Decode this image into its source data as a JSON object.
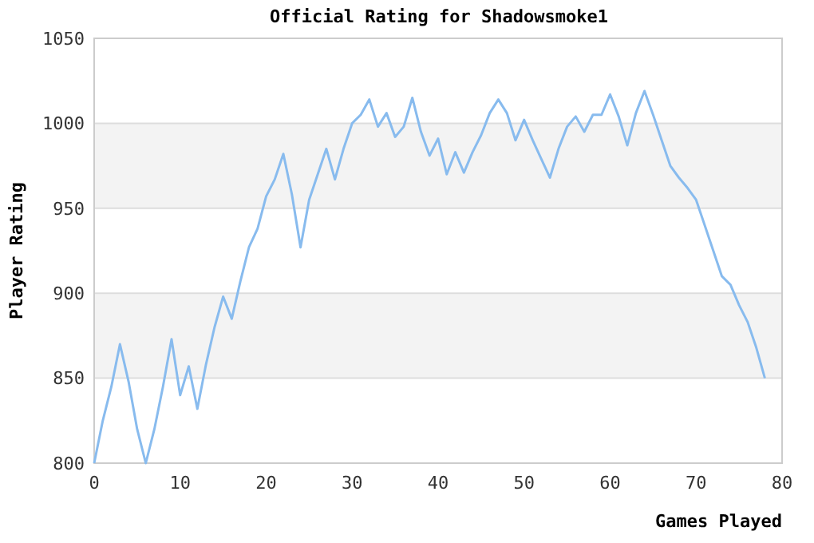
{
  "chart_data": {
    "type": "line",
    "title": "Official Rating for Shadowsmoke1",
    "xlabel": "Games Played",
    "ylabel": "Player Rating",
    "x": [
      0,
      1,
      2,
      3,
      4,
      5,
      6,
      7,
      8,
      9,
      10,
      11,
      12,
      13,
      14,
      15,
      16,
      17,
      18,
      19,
      20,
      21,
      22,
      23,
      24,
      25,
      26,
      27,
      28,
      29,
      30,
      31,
      32,
      33,
      34,
      35,
      36,
      37,
      38,
      39,
      40,
      41,
      42,
      43,
      44,
      45,
      46,
      47,
      48,
      49,
      50,
      51,
      52,
      53,
      54,
      55,
      56,
      57,
      58,
      59,
      60,
      61,
      62,
      63,
      64,
      65,
      66,
      67,
      68,
      69,
      70,
      71,
      72,
      73,
      74,
      75,
      76,
      77,
      78
    ],
    "series": [
      {
        "color": "#88bbee",
        "values": [
          800,
          825,
          845,
          870,
          848,
          820,
          800,
          820,
          845,
          873,
          840,
          857,
          832,
          858,
          880,
          898,
          885,
          907,
          927,
          938,
          957,
          967,
          982,
          958,
          927,
          955,
          970,
          985,
          967,
          985,
          1000,
          1005,
          1014,
          998,
          1006,
          992,
          998,
          1015,
          995,
          981,
          991,
          970,
          983,
          971,
          983,
          993,
          1006,
          1014,
          1006,
          990,
          1002,
          990,
          979,
          968,
          985,
          998,
          1004,
          995,
          1005,
          1005,
          1017,
          1004,
          987,
          1006,
          1019,
          1005,
          990,
          975,
          968,
          962,
          955,
          940,
          925,
          910,
          905,
          893,
          883,
          868,
          850
        ]
      }
    ],
    "xlim": [
      0,
      80
    ],
    "xticks": [
      0,
      10,
      20,
      30,
      40,
      50,
      60,
      70,
      80
    ],
    "ylim": [
      800,
      1050
    ],
    "yticks": [
      800,
      850,
      900,
      950,
      1000,
      1050
    ],
    "grid": "y"
  }
}
